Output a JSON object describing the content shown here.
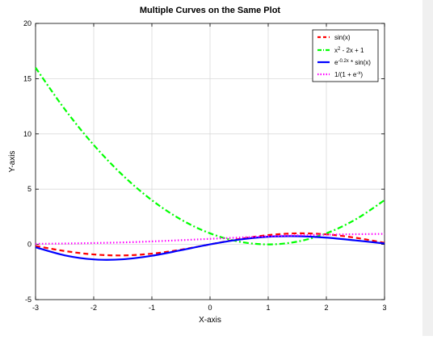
{
  "chart_data": {
    "type": "line",
    "title": "Multiple Curves on the Same Plot",
    "xlabel": "X-axis",
    "ylabel": "Y-axis",
    "xlim": [
      -3,
      3
    ],
    "ylim": [
      -5,
      20
    ],
    "x_ticks": [
      -3,
      -2,
      -1,
      0,
      1,
      2,
      3
    ],
    "y_ticks": [
      -5,
      0,
      5,
      10,
      15,
      20
    ],
    "x_tick_labels": [
      "-3",
      "-2",
      "-1",
      "0",
      "1",
      "2",
      "3"
    ],
    "y_tick_labels": [
      "-5",
      "0",
      "5",
      "10",
      "15",
      "20"
    ],
    "grid": true,
    "legend_position": "top-right",
    "x": [
      -3.0,
      -2.5,
      -2.0,
      -1.5,
      -1.0,
      -0.5,
      0.0,
      0.5,
      1.0,
      1.5,
      2.0,
      2.5,
      3.0
    ],
    "series": [
      {
        "name": "sin(x)",
        "color": "#ff0000",
        "style": "dashed",
        "values": [
          -0.14,
          -0.6,
          -0.91,
          -1.0,
          -0.84,
          -0.48,
          0.0,
          0.48,
          0.84,
          1.0,
          0.91,
          0.6,
          0.14
        ]
      },
      {
        "name": "x² - 2x + 1",
        "color": "#00ff00",
        "style": "dashdot",
        "values": [
          16.0,
          12.25,
          9.0,
          6.25,
          4.0,
          2.25,
          1.0,
          0.25,
          0.0,
          0.25,
          1.0,
          2.25,
          4.0
        ]
      },
      {
        "name": "e^(-0.2x) * sin(x)",
        "color": "#0000ff",
        "style": "solid",
        "values": [
          -0.26,
          -0.99,
          -1.36,
          -1.35,
          -1.03,
          -0.53,
          0.0,
          0.43,
          0.69,
          0.74,
          0.61,
          0.36,
          0.08
        ]
      },
      {
        "name": "1/(1+e^(-x))",
        "color": "#ff00ff",
        "style": "dotted",
        "values": [
          0.05,
          0.08,
          0.12,
          0.18,
          0.27,
          0.38,
          0.5,
          0.62,
          0.73,
          0.82,
          0.88,
          0.92,
          0.95
        ]
      }
    ]
  }
}
